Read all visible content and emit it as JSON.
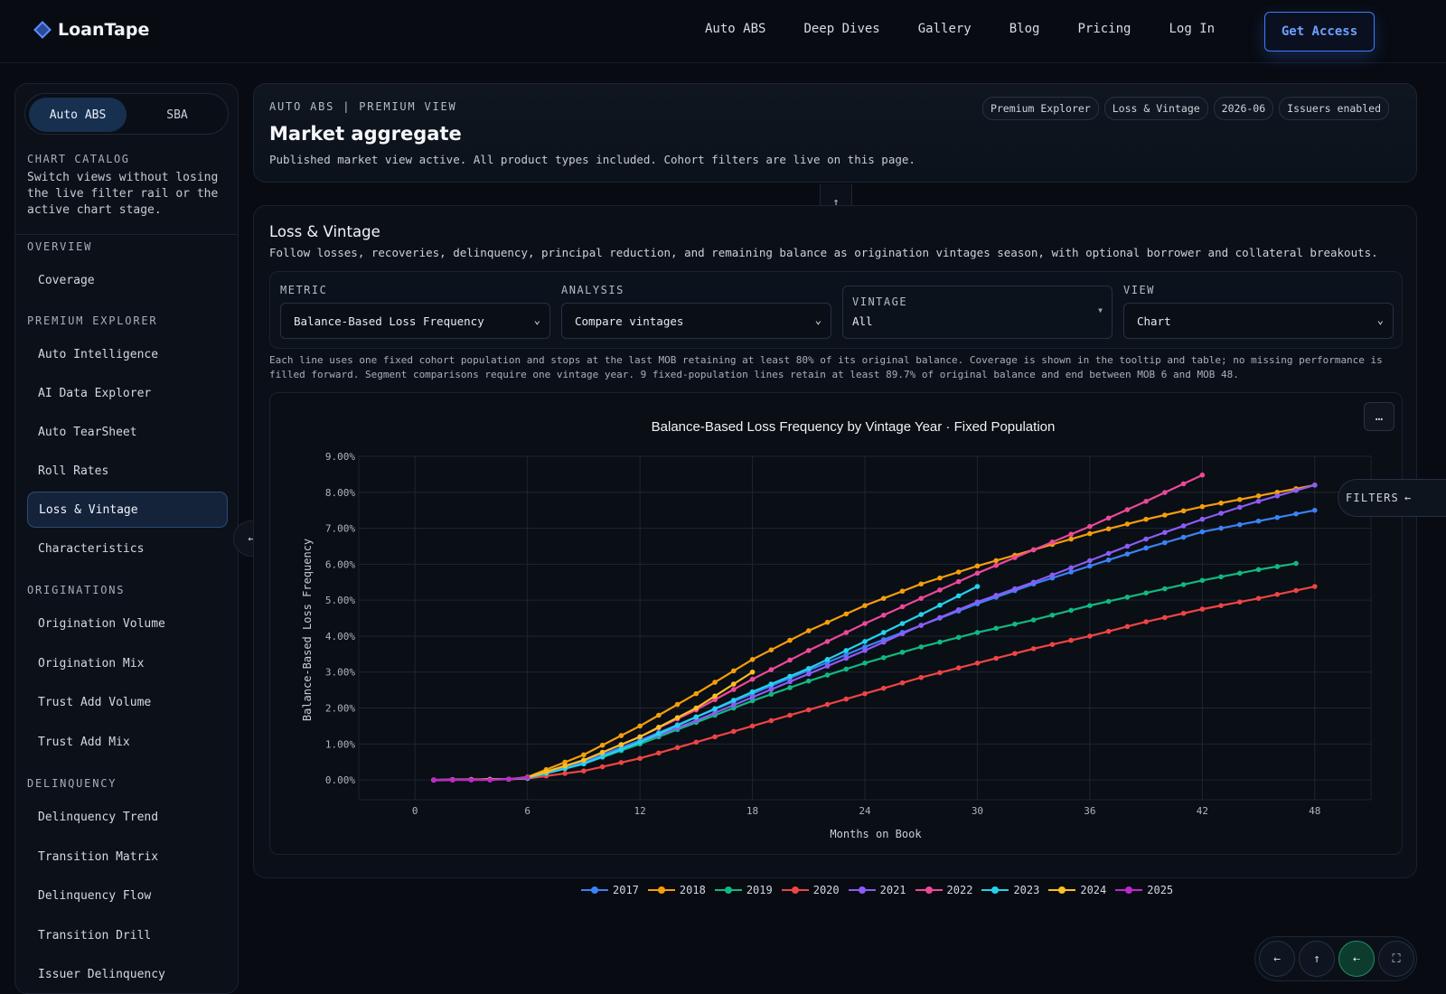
{
  "nav": {
    "brand": "LoanTape",
    "links": [
      "Auto ABS",
      "Deep Dives",
      "Gallery",
      "Blog",
      "Pricing",
      "Log In"
    ],
    "cta": "Get Access"
  },
  "sidebar": {
    "segment": [
      {
        "label": "Auto ABS",
        "active": true
      },
      {
        "label": "SBA",
        "active": false
      }
    ],
    "catalog_heading": "CHART CATALOG",
    "catalog_desc": "Switch views without losing the live filter rail or the active chart stage.",
    "sections": [
      {
        "heading": "OVERVIEW",
        "items": [
          "Coverage"
        ]
      },
      {
        "heading": "PREMIUM EXPLORER",
        "items": [
          "Auto Intelligence",
          "AI Data Explorer",
          "Auto TearSheet",
          "Roll Rates",
          "Loss & Vintage",
          "Characteristics"
        ]
      },
      {
        "heading": "ORIGINATIONS",
        "items": [
          "Origination Volume",
          "Origination Mix",
          "Trust Add Volume",
          "Trust Add Mix"
        ]
      },
      {
        "heading": "DELINQUENCY",
        "items": [
          "Delinquency Trend",
          "Transition Matrix",
          "Delinquency Flow",
          "Transition Drill",
          "Issuer Delinquency"
        ]
      }
    ],
    "active_item": "Loss & Vintage"
  },
  "header": {
    "eyebrow": "AUTO ABS | PREMIUM VIEW",
    "title": "Market aggregate",
    "subtitle": "Published market view active. All product types included. Cohort filters are live on this page.",
    "chips": [
      "Premium Explorer",
      "Loss & Vintage",
      "2026-06",
      "Issuers enabled"
    ]
  },
  "section": {
    "title": "Loss & Vintage",
    "description": "Follow losses, recoveries, delinquency, principal reduction, and remaining balance as origination vintages season, with optional borrower and collateral breakouts.",
    "controls": {
      "metric": {
        "label": "METRIC",
        "value": "Balance-Based Loss Frequency"
      },
      "analysis": {
        "label": "ANALYSIS",
        "value": "Compare vintages"
      },
      "vintage": {
        "label": "VINTAGE",
        "value": "All"
      },
      "view": {
        "label": "VIEW",
        "value": "Chart"
      }
    },
    "note": "Each line uses one fixed cohort population and stops at the last MOB retaining at least 80% of its original balance. Coverage is shown in the tooltip and table; no missing performance is filled forward. Segment comparisons require one vintage year. 9 fixed-population lines retain at least 89.7% of original balance and end between MOB 6 and MOB 48.",
    "more_label": "…",
    "filters_label": "FILTERS"
  },
  "chart_data": {
    "type": "line",
    "title": "Balance-Based Loss Frequency by Vintage Year · Fixed Population",
    "xlabel": "Months on Book",
    "ylabel": "Balance-Based Loss Frequency",
    "xlim": [
      -3,
      51
    ],
    "ylim": [
      -0.55,
      9.0
    ],
    "xticks": [
      0,
      6,
      12,
      18,
      24,
      30,
      36,
      42,
      48
    ],
    "yticks": [
      0,
      1,
      2,
      3,
      4,
      5,
      6,
      7,
      8,
      9
    ],
    "ytick_labels": [
      "0.00%",
      "1.00%",
      "2.00%",
      "3.00%",
      "4.00%",
      "5.00%",
      "6.00%",
      "7.00%",
      "8.00%",
      "9.00%"
    ],
    "grid": true,
    "legend_position": "bottom",
    "series": [
      {
        "name": "2017",
        "color": "#3b82f6",
        "end_mob": 48,
        "anchors": [
          [
            1,
            0
          ],
          [
            5,
            0.02
          ],
          [
            6,
            0.06
          ],
          [
            9,
            0.5
          ],
          [
            12,
            1.1
          ],
          [
            15,
            1.75
          ],
          [
            18,
            2.4
          ],
          [
            21,
            3.05
          ],
          [
            24,
            3.7
          ],
          [
            27,
            4.3
          ],
          [
            30,
            4.9
          ],
          [
            33,
            5.45
          ],
          [
            36,
            5.95
          ],
          [
            39,
            6.45
          ],
          [
            42,
            6.9
          ],
          [
            45,
            7.2
          ],
          [
            48,
            7.5
          ]
        ]
      },
      {
        "name": "2018",
        "color": "#f59e0b",
        "end_mob": 48,
        "anchors": [
          [
            1,
            0
          ],
          [
            5,
            0.02
          ],
          [
            6,
            0.08
          ],
          [
            9,
            0.7
          ],
          [
            12,
            1.5
          ],
          [
            15,
            2.4
          ],
          [
            18,
            3.35
          ],
          [
            21,
            4.15
          ],
          [
            24,
            4.85
          ],
          [
            27,
            5.45
          ],
          [
            30,
            5.95
          ],
          [
            33,
            6.4
          ],
          [
            36,
            6.85
          ],
          [
            39,
            7.25
          ],
          [
            42,
            7.6
          ],
          [
            45,
            7.9
          ],
          [
            48,
            8.2
          ]
        ]
      },
      {
        "name": "2019",
        "color": "#10b981",
        "end_mob": 47,
        "anchors": [
          [
            1,
            0
          ],
          [
            5,
            0.02
          ],
          [
            6,
            0.05
          ],
          [
            9,
            0.45
          ],
          [
            12,
            1.0
          ],
          [
            15,
            1.6
          ],
          [
            18,
            2.2
          ],
          [
            21,
            2.75
          ],
          [
            24,
            3.25
          ],
          [
            27,
            3.7
          ],
          [
            30,
            4.1
          ],
          [
            33,
            4.45
          ],
          [
            36,
            4.85
          ],
          [
            39,
            5.2
          ],
          [
            42,
            5.55
          ],
          [
            45,
            5.85
          ],
          [
            47,
            6.02
          ]
        ]
      },
      {
        "name": "2020",
        "color": "#ef4444",
        "end_mob": 48,
        "anchors": [
          [
            1,
            0
          ],
          [
            5,
            0.02
          ],
          [
            6,
            0.04
          ],
          [
            9,
            0.25
          ],
          [
            12,
            0.6
          ],
          [
            15,
            1.05
          ],
          [
            18,
            1.5
          ],
          [
            21,
            1.95
          ],
          [
            24,
            2.4
          ],
          [
            27,
            2.85
          ],
          [
            30,
            3.25
          ],
          [
            33,
            3.65
          ],
          [
            36,
            4.0
          ],
          [
            39,
            4.4
          ],
          [
            42,
            4.75
          ],
          [
            45,
            5.05
          ],
          [
            48,
            5.38
          ]
        ]
      },
      {
        "name": "2021",
        "color": "#8b5cf6",
        "end_mob": 48,
        "anchors": [
          [
            1,
            0
          ],
          [
            5,
            0.02
          ],
          [
            6,
            0.05
          ],
          [
            9,
            0.45
          ],
          [
            12,
            1.05
          ],
          [
            15,
            1.65
          ],
          [
            18,
            2.3
          ],
          [
            21,
            2.95
          ],
          [
            24,
            3.6
          ],
          [
            27,
            4.3
          ],
          [
            30,
            4.95
          ],
          [
            33,
            5.5
          ],
          [
            36,
            6.1
          ],
          [
            39,
            6.7
          ],
          [
            42,
            7.25
          ],
          [
            45,
            7.75
          ],
          [
            48,
            8.2
          ]
        ]
      },
      {
        "name": "2022",
        "color": "#ec4899",
        "end_mob": 42,
        "anchors": [
          [
            1,
            0
          ],
          [
            5,
            0.02
          ],
          [
            6,
            0.06
          ],
          [
            9,
            0.55
          ],
          [
            12,
            1.2
          ],
          [
            15,
            1.95
          ],
          [
            18,
            2.8
          ],
          [
            21,
            3.6
          ],
          [
            24,
            4.35
          ],
          [
            27,
            5.05
          ],
          [
            30,
            5.75
          ],
          [
            33,
            6.4
          ],
          [
            36,
            7.05
          ],
          [
            39,
            7.75
          ],
          [
            42,
            8.48
          ]
        ]
      },
      {
        "name": "2023",
        "color": "#22d3ee",
        "end_mob": 30,
        "anchors": [
          [
            1,
            0
          ],
          [
            5,
            0.02
          ],
          [
            6,
            0.05
          ],
          [
            9,
            0.45
          ],
          [
            12,
            1.05
          ],
          [
            15,
            1.75
          ],
          [
            18,
            2.45
          ],
          [
            21,
            3.1
          ],
          [
            24,
            3.85
          ],
          [
            27,
            4.6
          ],
          [
            30,
            5.38
          ]
        ]
      },
      {
        "name": "2024",
        "color": "#fbbf24",
        "end_mob": 18,
        "anchors": [
          [
            1,
            0
          ],
          [
            5,
            0.02
          ],
          [
            6,
            0.07
          ],
          [
            9,
            0.55
          ],
          [
            12,
            1.2
          ],
          [
            15,
            2.0
          ],
          [
            18,
            3.0
          ]
        ]
      },
      {
        "name": "2025",
        "color": "#c026d3",
        "end_mob": 6,
        "anchors": [
          [
            1,
            0
          ],
          [
            2,
            0
          ],
          [
            3,
            0
          ],
          [
            4,
            0
          ],
          [
            5,
            0.02
          ],
          [
            6,
            0.07
          ]
        ]
      }
    ]
  },
  "fabs": [
    {
      "icon": "arrow-left-icon",
      "glyph": "←"
    },
    {
      "icon": "arrow-up-icon",
      "glyph": "↑"
    },
    {
      "icon": "collapse-rail-icon",
      "glyph": "⇠"
    },
    {
      "icon": "fullscreen-icon",
      "glyph": "⛶"
    }
  ]
}
